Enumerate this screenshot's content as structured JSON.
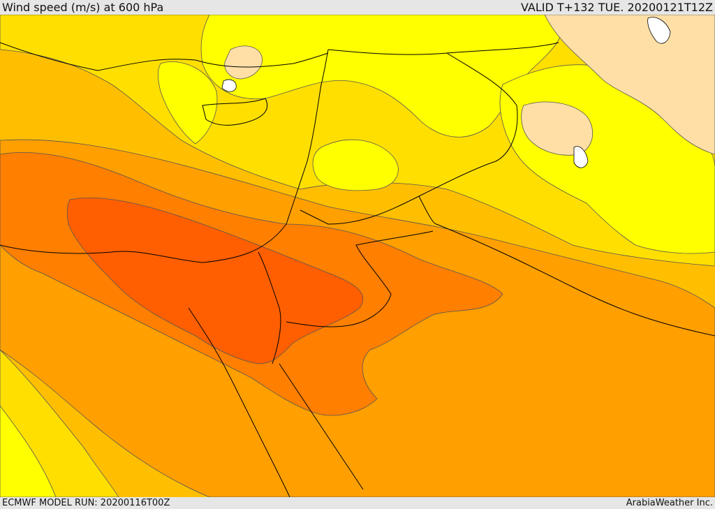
{
  "header": {
    "title": "Wind speed (m/s) at 600 hPa",
    "valid": "VALID T+132 TUE. 20200121T12Z"
  },
  "footer": {
    "model_run": "ECMWF MODEL RUN: 20200116T00Z",
    "credit": "ArabiaWeather Inc."
  },
  "colors": {
    "band_light": "#ffdfa6",
    "band_1": "#ffff00",
    "band_2": "#ffdf00",
    "band_3": "#ffbf00",
    "band_4": "#ff9f00",
    "band_5": "#ff7f00",
    "band_6": "#ff5f00",
    "contour": "#555555",
    "border": "#000000"
  }
}
